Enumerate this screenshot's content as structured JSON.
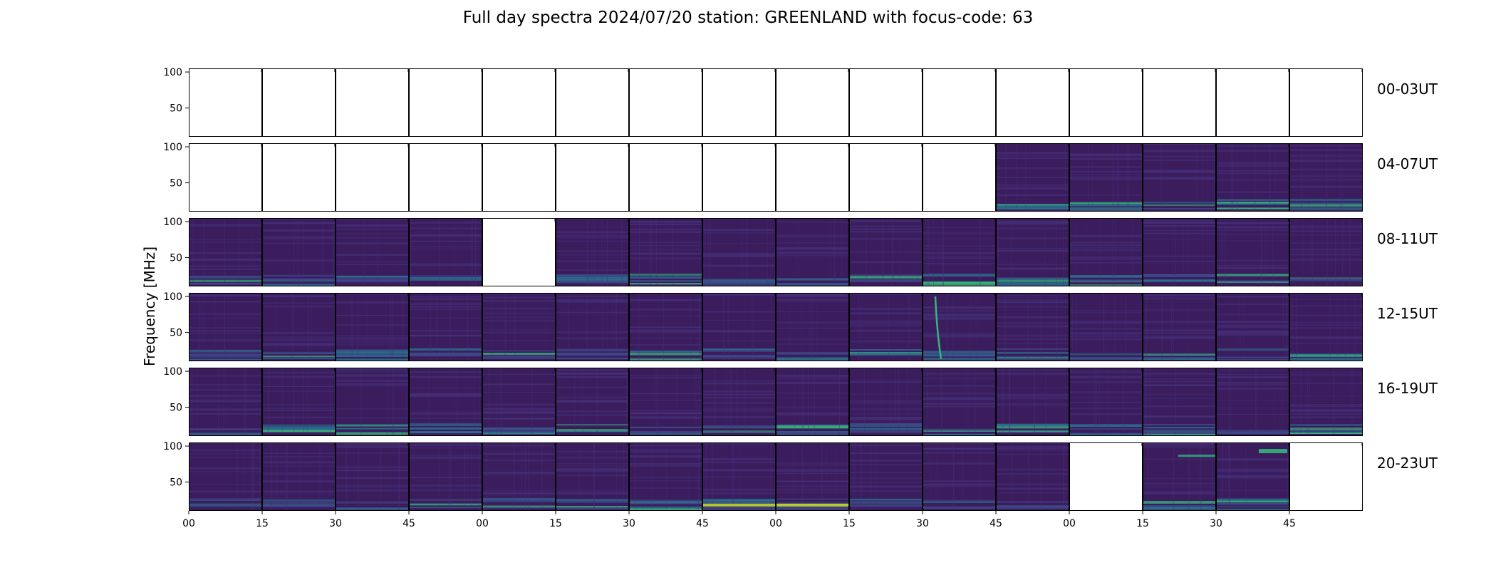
{
  "chart_data": {
    "type": "heatmap",
    "title": "Full day spectra 2024/07/20 station: GREENLAND with focus-code: 63",
    "ylabel": "Frequency [MHz]",
    "xlabel": "",
    "ylim": [
      10,
      105
    ],
    "y_ticks": [
      50,
      100
    ],
    "x_ticks": [
      "00",
      "15",
      "30",
      "45",
      "00",
      "15",
      "30",
      "45",
      "00",
      "15",
      "30",
      "45",
      "00",
      "15",
      "30",
      "45"
    ],
    "colormap": "viridis",
    "panels_per_row": 16,
    "panel_minutes": 15,
    "rows": [
      {
        "label": "00-03UT",
        "data_present": [
          0,
          0,
          0,
          0,
          0,
          0,
          0,
          0,
          0,
          0,
          0,
          0,
          0,
          0,
          0,
          0
        ]
      },
      {
        "label": "04-07UT",
        "data_present": [
          0,
          0,
          0,
          0,
          0,
          0,
          0,
          0,
          0,
          0,
          0,
          1,
          1,
          1,
          1,
          1
        ]
      },
      {
        "label": "08-11UT",
        "data_present": [
          1,
          1,
          1,
          1,
          0,
          1,
          1,
          1,
          1,
          1,
          1,
          1,
          1,
          1,
          1,
          1
        ]
      },
      {
        "label": "12-15UT",
        "data_present": [
          1,
          1,
          1,
          1,
          1,
          1,
          1,
          1,
          1,
          1,
          1,
          1,
          1,
          1,
          1,
          1
        ]
      },
      {
        "label": "16-19UT",
        "data_present": [
          1,
          1,
          1,
          1,
          1,
          1,
          1,
          1,
          1,
          1,
          1,
          1,
          1,
          1,
          1,
          1
        ]
      },
      {
        "label": "20-23UT",
        "data_present": [
          1,
          1,
          1,
          1,
          1,
          1,
          1,
          1,
          1,
          1,
          1,
          1,
          0,
          1,
          1,
          0
        ]
      }
    ],
    "colors": {
      "background": "#3b1d5e",
      "band_low": "#2c6e8e",
      "band_bright": "#35b779",
      "band_peak": "#c8e020",
      "axis": "#000000"
    }
  }
}
